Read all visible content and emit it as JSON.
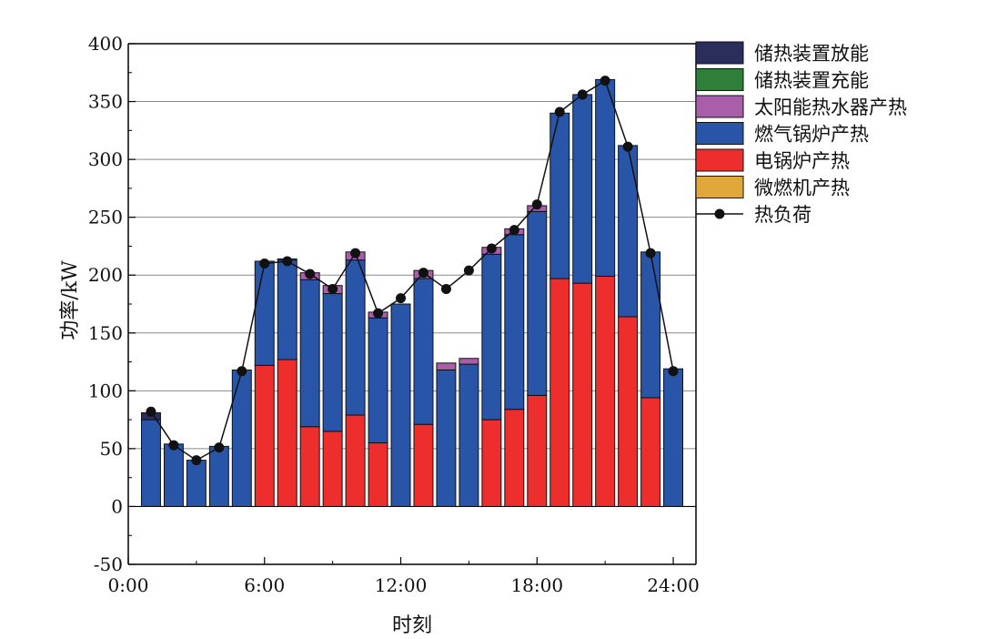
{
  "chart_data": {
    "type": "bar",
    "stacked": true,
    "xlabel": "时刻",
    "ylabel": "功率/kW",
    "ylim": [
      -50,
      400
    ],
    "xlim": [
      0,
      25
    ],
    "yticks": [
      -50,
      0,
      50,
      100,
      150,
      200,
      250,
      300,
      350,
      400
    ],
    "xticks": [
      {
        "value": 0,
        "label": "0:00"
      },
      {
        "value": 6,
        "label": "6:00"
      },
      {
        "value": 12,
        "label": "12:00"
      },
      {
        "value": 18,
        "label": "18:00"
      },
      {
        "value": 24,
        "label": "24:00"
      }
    ],
    "grid": "horizontal",
    "legend_position": "right",
    "categories": [
      1,
      2,
      3,
      4,
      5,
      6,
      7,
      8,
      9,
      10,
      11,
      12,
      13,
      14,
      15,
      16,
      17,
      18,
      19,
      20,
      21,
      22,
      23,
      24
    ],
    "series": [
      {
        "name": "储热装置放能",
        "color": "#2b2d5c",
        "values": [
          6,
          0,
          0,
          0,
          0,
          0,
          0,
          0,
          0,
          0,
          0,
          0,
          0,
          0,
          0,
          0,
          0,
          0,
          0,
          0,
          0,
          0,
          0,
          0
        ]
      },
      {
        "name": "储热装置充能",
        "color": "#2f7f3b",
        "values": [
          0,
          0,
          0,
          0,
          0,
          0,
          0,
          0,
          0,
          0,
          0,
          0,
          0,
          0,
          0,
          0,
          0,
          0,
          0,
          0,
          0,
          0,
          0,
          0
        ]
      },
      {
        "name": "太阳能热水器产热",
        "color": "#a85ea8",
        "values": [
          0,
          0,
          0,
          0,
          0,
          0,
          1,
          6,
          7,
          7,
          5,
          0,
          7,
          6,
          5,
          6,
          5,
          5,
          0,
          0,
          0,
          0,
          0,
          0
        ]
      },
      {
        "name": "燃气锅炉产热",
        "color": "#2855a8",
        "values": [
          75,
          54,
          40,
          52,
          118,
          90,
          86,
          127,
          119,
          134,
          108,
          175,
          126,
          118,
          123,
          143,
          151,
          159,
          143,
          163,
          170,
          148,
          126,
          119
        ]
      },
      {
        "name": "电锅炉产热",
        "color": "#ee2d2d",
        "values": [
          0,
          0,
          0,
          0,
          0,
          122,
          127,
          69,
          65,
          79,
          55,
          0,
          71,
          0,
          0,
          75,
          84,
          96,
          197,
          193,
          199,
          164,
          94,
          0
        ]
      },
      {
        "name": "微燃机产热",
        "color": "#e0a83a",
        "values": [
          0,
          0,
          0,
          0,
          0,
          0,
          0,
          0,
          0,
          0,
          0,
          0,
          0,
          0,
          0,
          0,
          0,
          0,
          0,
          0,
          0,
          0,
          0,
          0
        ]
      }
    ],
    "line": {
      "name": "热负荷",
      "color": "#111111",
      "x": [
        1,
        2,
        3,
        4,
        5,
        6,
        7,
        8,
        9,
        10,
        11,
        12,
        13,
        14,
        15,
        16,
        17,
        18,
        19,
        20,
        21,
        22,
        23,
        24
      ],
      "values": [
        82,
        53,
        40,
        51,
        117,
        210,
        212,
        201,
        188,
        219,
        167,
        180,
        202,
        188,
        204,
        223,
        239,
        261,
        341,
        356,
        368,
        311,
        219,
        117
      ]
    }
  }
}
